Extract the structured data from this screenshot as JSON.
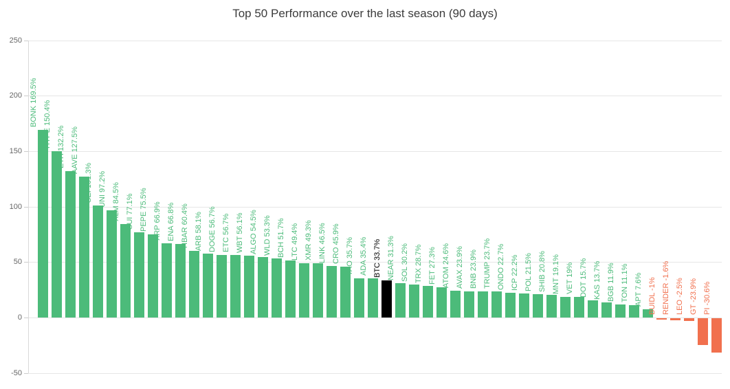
{
  "chart_data": {
    "type": "bar",
    "title": "Top 50 Performance over the last season (90 days)",
    "xlabel": "",
    "ylabel": "",
    "ylim": [
      -50,
      250
    ],
    "yticks": [
      250,
      200,
      150,
      100,
      50,
      0,
      -50
    ],
    "grid": true,
    "legend": "none",
    "highlight_category": "BTC",
    "colors": {
      "positive": "#4cbb7a",
      "negative": "#f1704e",
      "highlight": "#000000",
      "grid": "#e6e6e6",
      "axis": "#d9d9d9",
      "tick": "#cccccc",
      "tick_label": "#666666",
      "title": "#3b3b3b"
    },
    "points": [
      {
        "symbol": "BONK",
        "value": 169.5,
        "text": "BONK 169.5%"
      },
      {
        "symbol": "HYPE",
        "value": 150.4,
        "text": "HYPE 150.4%"
      },
      {
        "symbol": "ETH",
        "value": 132.2,
        "text": "ETH 132.2%"
      },
      {
        "symbol": "AAVE",
        "value": 127.5,
        "text": "AAVE 127.5%"
      },
      {
        "symbol": "SEI",
        "value": 101.3,
        "text": "SEI 101.3%"
      },
      {
        "symbol": "UNI",
        "value": 97.2,
        "text": "UNI 97.2%"
      },
      {
        "symbol": "XLM",
        "value": 84.5,
        "text": "XLM 84.5%"
      },
      {
        "symbol": "SUI",
        "value": 77.1,
        "text": "SUI 77.1%"
      },
      {
        "symbol": "PEPE",
        "value": 75.5,
        "text": "PEPE 75.5%"
      },
      {
        "symbol": "XRP",
        "value": 66.9,
        "text": "XRP 66.9%"
      },
      {
        "symbol": "ENA",
        "value": 66.8,
        "text": "ENA 66.8%"
      },
      {
        "symbol": "HBAR",
        "value": 60.4,
        "text": "HBAR 60.4%"
      },
      {
        "symbol": "ARB",
        "value": 58.1,
        "text": "ARB 58.1%"
      },
      {
        "symbol": "DOGE",
        "value": 56.7,
        "text": "DOGE 56.7%"
      },
      {
        "symbol": "ETC",
        "value": 56.7,
        "text": "ETC 56.7%"
      },
      {
        "symbol": "WBT",
        "value": 56.1,
        "text": "WBT 56.1%"
      },
      {
        "symbol": "ALGO",
        "value": 54.5,
        "text": "ALGO 54.5%"
      },
      {
        "symbol": "WLD",
        "value": 53.3,
        "text": "WLD 53.3%"
      },
      {
        "symbol": "BCH",
        "value": 51.7,
        "text": "BCH 51.7%"
      },
      {
        "symbol": "LTC",
        "value": 49.4,
        "text": "LTC 49.4%"
      },
      {
        "symbol": "XMR",
        "value": 49.3,
        "text": "XMR 49.3%"
      },
      {
        "symbol": "LINK",
        "value": 46.5,
        "text": "LINK 46.5%"
      },
      {
        "symbol": "CRO",
        "value": 45.9,
        "text": "CRO 45.9%"
      },
      {
        "symbol": "TAO",
        "value": 35.7,
        "text": "TAO 35.7%"
      },
      {
        "symbol": "ADA",
        "value": 35.4,
        "text": "ADA 35.4%"
      },
      {
        "symbol": "BTC",
        "value": 33.7,
        "text": "BTC 33.7%"
      },
      {
        "symbol": "NEAR",
        "value": 31.3,
        "text": "NEAR 31.3%"
      },
      {
        "symbol": "SOL",
        "value": 30.2,
        "text": "SOL 30.2%"
      },
      {
        "symbol": "TRX",
        "value": 28.7,
        "text": "TRX 28.7%"
      },
      {
        "symbol": "FET",
        "value": 27.3,
        "text": "FET 27.3%"
      },
      {
        "symbol": "ATOM",
        "value": 24.6,
        "text": "ATOM 24.6%"
      },
      {
        "symbol": "AVAX",
        "value": 23.9,
        "text": "AVAX 23.9%"
      },
      {
        "symbol": "BNB",
        "value": 23.9,
        "text": "BNB 23.9%"
      },
      {
        "symbol": "TRUMP",
        "value": 23.7,
        "text": "TRUMP 23.7%"
      },
      {
        "symbol": "ONDO",
        "value": 22.7,
        "text": "ONDO 22.7%"
      },
      {
        "symbol": "ICP",
        "value": 22.2,
        "text": "ICP 22.2%"
      },
      {
        "symbol": "POL",
        "value": 21.5,
        "text": "POL 21.5%"
      },
      {
        "symbol": "SHIB",
        "value": 20.8,
        "text": "SHIB 20.8%"
      },
      {
        "symbol": "MNT",
        "value": 19.1,
        "text": "MNT 19.1%"
      },
      {
        "symbol": "VET",
        "value": 19.0,
        "text": "VET 19%"
      },
      {
        "symbol": "DOT",
        "value": 15.7,
        "text": "DOT 15.7%"
      },
      {
        "symbol": "KAS",
        "value": 13.7,
        "text": "KAS 13.7%"
      },
      {
        "symbol": "BGB",
        "value": 11.9,
        "text": "BGB 11.9%"
      },
      {
        "symbol": "TON",
        "value": 11.1,
        "text": "TON 11.1%"
      },
      {
        "symbol": "APT",
        "value": 7.6,
        "text": "APT 7.6%"
      },
      {
        "symbol": "BUIDL",
        "value": -1.0,
        "text": "BUIDL -1%"
      },
      {
        "symbol": "RENDER",
        "value": -1.6,
        "text": "RENDER -1.6%"
      },
      {
        "symbol": "LEO",
        "value": -2.5,
        "text": "LEO -2.5%"
      },
      {
        "symbol": "GT",
        "value": -23.9,
        "text": "GT -23.9%"
      },
      {
        "symbol": "PI",
        "value": -30.6,
        "text": "PI -30.6%"
      }
    ]
  }
}
